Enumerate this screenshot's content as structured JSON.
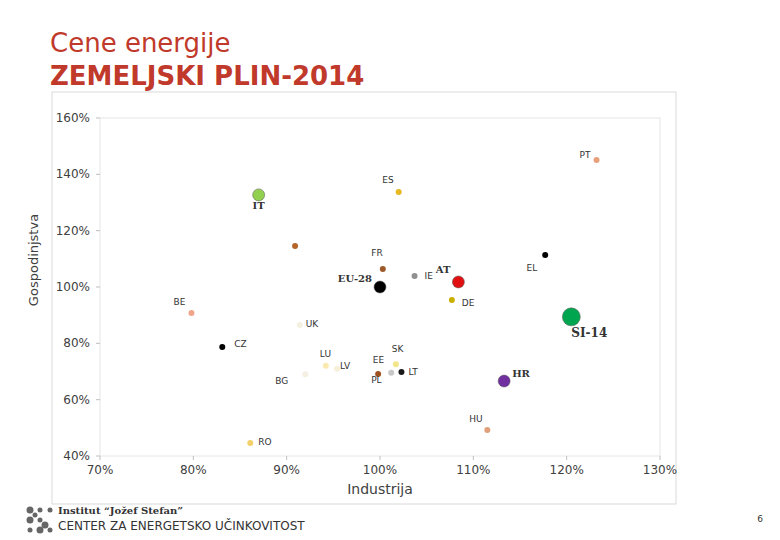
{
  "chart_data": {
    "type": "scatter",
    "title": "Cene energije",
    "subtitle": "ZEMELJSKI PLIN-2014",
    "x_label": "Industrija",
    "y_label": "Gospodinjstva",
    "xlim": [
      70,
      130
    ],
    "ylim": [
      40,
      160
    ],
    "xticks": [
      {
        "value": 70,
        "label": "70%"
      },
      {
        "value": 80,
        "label": "80%"
      },
      {
        "value": 90,
        "label": "90%"
      },
      {
        "value": 100,
        "label": "100%"
      },
      {
        "value": 110,
        "label": "110%"
      },
      {
        "value": 120,
        "label": "120%"
      },
      {
        "value": 130,
        "label": "130%"
      }
    ],
    "yticks": [
      {
        "value": 40,
        "label": "40%"
      },
      {
        "value": 60,
        "label": "60%"
      },
      {
        "value": 80,
        "label": "80%"
      },
      {
        "value": 100,
        "label": "100%"
      },
      {
        "value": 120,
        "label": "120%"
      },
      {
        "value": 140,
        "label": "140%"
      },
      {
        "value": 160,
        "label": "160%"
      }
    ],
    "grid": false,
    "series": [
      {
        "name": "PT",
        "color": "#e8a07a",
        "marker": "small",
        "x": [
          123.2
        ],
        "values": [
          145.1
        ]
      },
      {
        "name": "ES",
        "color": "#e6b822",
        "marker": "small",
        "x": [
          102.0
        ],
        "values": [
          133.7
        ]
      },
      {
        "name": "IT",
        "color": "#92d050",
        "marker": "large",
        "x": [
          87.0
        ],
        "values": [
          132.7
        ]
      },
      {
        "name": null,
        "color": "#b5652a",
        "marker": "small",
        "x": [
          90.9
        ],
        "values": [
          114.6
        ]
      },
      {
        "name": "FR",
        "color": "#9c5a2a",
        "marker": "small",
        "x": [
          100.3
        ],
        "values": [
          106.4
        ]
      },
      {
        "name": "IE",
        "color": "#909090",
        "marker": "small",
        "x": [
          103.7
        ],
        "values": [
          103.9
        ]
      },
      {
        "name": "AT",
        "color": "#e01010",
        "marker": "large",
        "x": [
          108.4
        ],
        "values": [
          101.8
        ]
      },
      {
        "name": "EL",
        "color": "#000000",
        "marker": "small",
        "x": [
          117.7
        ],
        "values": [
          111.4
        ]
      },
      {
        "name": "EU-28",
        "color": "#000000",
        "marker": "large",
        "x": [
          100.0
        ],
        "values": [
          100.0
        ]
      },
      {
        "name": "DE",
        "color": "#c9b000",
        "marker": "small",
        "x": [
          107.7
        ],
        "values": [
          95.4
        ]
      },
      {
        "name": "BE",
        "color": "#f0a58a",
        "marker": "small",
        "x": [
          79.8
        ],
        "values": [
          90.8
        ]
      },
      {
        "name": "UK",
        "color": "#f4f0e0",
        "marker": "small",
        "x": [
          91.4
        ],
        "values": [
          86.5
        ]
      },
      {
        "name": "SI-14",
        "color": "#00a550",
        "marker": "large",
        "x": [
          120.5
        ],
        "values": [
          89.4
        ]
      },
      {
        "name": "CZ",
        "color": "#000000",
        "marker": "small",
        "x": [
          83.1
        ],
        "values": [
          78.7
        ]
      },
      {
        "name": "LU",
        "color": "#fbeab0",
        "marker": "small",
        "x": [
          94.2
        ],
        "values": [
          72.0
        ]
      },
      {
        "name": "LV",
        "color": "#f6f0d8",
        "marker": "small",
        "x": [
          95.4
        ],
        "values": [
          71.0
        ]
      },
      {
        "name": "BG",
        "color": "#f4efe2",
        "marker": "small",
        "x": [
          92.0
        ],
        "values": [
          69.0
        ]
      },
      {
        "name": "SK",
        "color": "#f2e58a",
        "marker": "small",
        "x": [
          101.7
        ],
        "values": [
          72.6
        ]
      },
      {
        "name": "EE",
        "color": "#c8c8c8",
        "marker": "small",
        "x": [
          101.2
        ],
        "values": [
          69.6
        ]
      },
      {
        "name": "PL",
        "color": "#a0521e",
        "marker": "small",
        "x": [
          99.8
        ],
        "values": [
          69.1
        ]
      },
      {
        "name": "LT",
        "color": "#1a1a1a",
        "marker": "small",
        "x": [
          102.3
        ],
        "values": [
          69.8
        ]
      },
      {
        "name": "HR",
        "color": "#7030a0",
        "marker": "large",
        "x": [
          113.3
        ],
        "values": [
          66.6
        ]
      },
      {
        "name": "HU",
        "color": "#e0a07a",
        "marker": "small",
        "x": [
          111.5
        ],
        "values": [
          49.2
        ]
      },
      {
        "name": "RO",
        "color": "#f2d06a",
        "marker": "small",
        "x": [
          86.1
        ],
        "values": [
          44.6
        ]
      }
    ],
    "footer": {
      "institute": "Institut “Jožef Stefan”",
      "center": "CENTER ZA ENERGETSKO UČINKOVITOST",
      "page": "6"
    }
  }
}
